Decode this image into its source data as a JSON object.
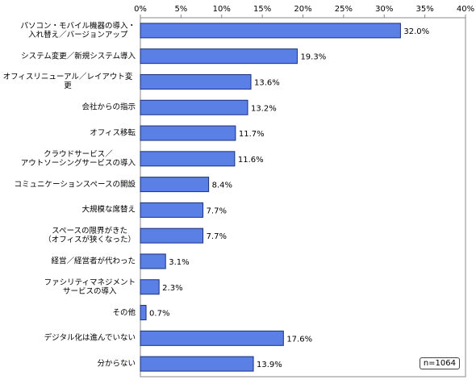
{
  "chart_data": {
    "type": "hbar",
    "categories": [
      "パソコン・モバイル機器の導入・\n入れ替え／バージョンアップ",
      "システム変更／新規システム導入",
      "オフィスリニューアル／レイアウト変更",
      "会社からの指示",
      "オフィス移転",
      "クラウドサービス／\nアウトソーシングサービスの導入",
      "コミュニケーションスペースの開設",
      "大規模な席替え",
      "スペースの限界がきた\n（オフィスが狭くなった）",
      "経営／経営者が代わった",
      "ファシリティマネジメント\nサービスの導入",
      "その他",
      "デジタル化は進んでいない",
      "分からない"
    ],
    "values": [
      32.0,
      19.3,
      13.6,
      13.2,
      11.7,
      11.6,
      8.4,
      7.7,
      7.7,
      3.1,
      2.3,
      0.7,
      17.6,
      13.9
    ],
    "value_labels": [
      "32.0%",
      "19.3%",
      "13.6%",
      "13.2%",
      "11.7%",
      "11.6%",
      "8.4%",
      "7.7%",
      "7.7%",
      "3.1%",
      "2.3%",
      "0.7%",
      "17.6%",
      "13.9%"
    ],
    "color": "#5a80e6",
    "xlim": [
      0,
      40
    ],
    "xticks": [
      {
        "value": 0,
        "label": "0%"
      },
      {
        "value": 5,
        "label": "5%"
      },
      {
        "value": 10,
        "label": "10%"
      },
      {
        "value": 15,
        "label": "15%"
      },
      {
        "value": 20,
        "label": "20%"
      },
      {
        "value": 25,
        "label": "25%"
      },
      {
        "value": 30,
        "label": "30%"
      },
      {
        "value": 35,
        "label": "35%"
      },
      {
        "value": 40,
        "label": "40%"
      }
    ],
    "annotation": "n=1064"
  }
}
